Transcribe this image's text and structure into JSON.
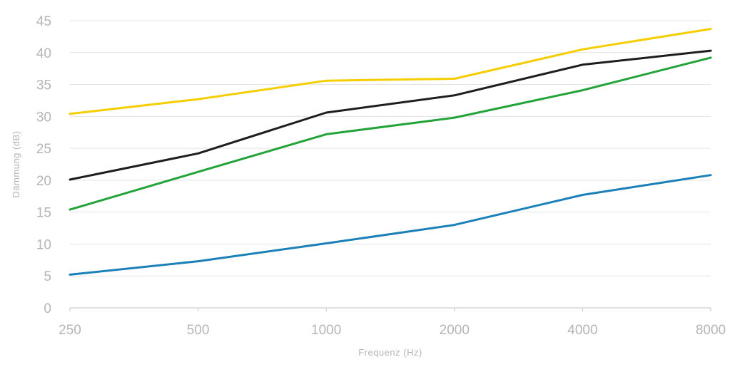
{
  "chart_data": {
    "type": "line",
    "xlabel": "Frequenz (Hz)",
    "ylabel": "Dämmung (dB)",
    "categories": [
      "250",
      "500",
      "1000",
      "2000",
      "4000",
      "8000"
    ],
    "yticks": [
      "0",
      "5",
      "10",
      "15",
      "20",
      "25",
      "30",
      "35",
      "40",
      "45"
    ],
    "ylim": [
      0,
      45
    ],
    "grid": true,
    "series": [
      {
        "color": "#f5cd00",
        "values": [
          30.4,
          32.7,
          35.6,
          35.9,
          40.5,
          43.7
        ]
      },
      {
        "color": "#1e1e1e",
        "values": [
          20.1,
          24.2,
          30.6,
          33.3,
          38.1,
          40.3
        ]
      },
      {
        "color": "#24a33a",
        "values": [
          15.4,
          21.3,
          27.2,
          29.8,
          34.1,
          39.2
        ]
      },
      {
        "color": "#1b7fb8",
        "values": [
          5.2,
          7.3,
          10.1,
          13.0,
          17.7,
          20.8
        ]
      }
    ]
  }
}
